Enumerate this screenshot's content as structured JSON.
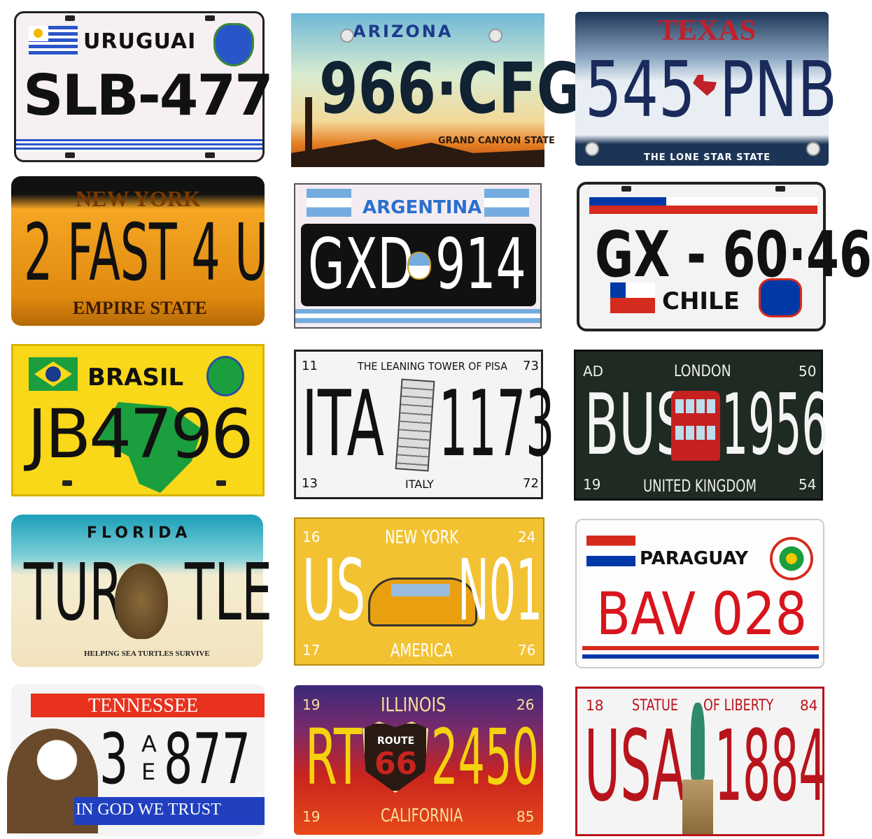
{
  "plates": {
    "uruguay": {
      "country": "URUGUAI",
      "number": "SLB-477"
    },
    "arizona": {
      "state": "ARIZONA",
      "number": "966·CFG",
      "slogan": "GRAND CANYON STATE"
    },
    "texas": {
      "state": "TEXAS",
      "left": "545",
      "right": "PNB",
      "slogan": "THE LONE STAR STATE"
    },
    "newyork": {
      "state": "NEW YORK",
      "number": "2 FAST 4 U",
      "slogan": "EMPIRE STATE"
    },
    "argentina": {
      "country": "ARGENTINA",
      "left": "GXD",
      "right": "914"
    },
    "chile": {
      "number": "GX - 60·46",
      "country": "CHILE"
    },
    "brasil": {
      "country": "BRASIL",
      "number": "JB4796"
    },
    "italy": {
      "tl": "11",
      "tr": "73",
      "bl": "13",
      "br": "72",
      "header": "THE LEANING TOWER OF PISA",
      "left": "ITA",
      "right": "1173",
      "country": "ITALY"
    },
    "london": {
      "tl": "AD",
      "tr": "50",
      "bl": "19",
      "br": "54",
      "city": "LONDON",
      "left": "BUS",
      "right": "1956",
      "country": "UNITED KINGDOM"
    },
    "florida": {
      "state": "FLORIDA",
      "left": "TUR",
      "right": "TLE",
      "slogan": "HELPING SEA TURTLES SURVIVE"
    },
    "nytaxi": {
      "tl": "16",
      "tr": "24",
      "bl": "17",
      "br": "76",
      "city": "NEW YORK",
      "left": "US",
      "right": "N01",
      "country": "AMERICA"
    },
    "paraguay": {
      "country": "PARAGUAY",
      "number": "BAV 028"
    },
    "tennessee": {
      "state": "TENNESSEE",
      "left": "3",
      "a": "A",
      "e": "E",
      "right": "877",
      "slogan": "IN GOD WE TRUST"
    },
    "illinois": {
      "tl": "19",
      "tr": "26",
      "bl": "19",
      "br": "85",
      "state": "ILLINOIS",
      "left": "RT",
      "route": "ROUTE",
      "routenum": "66",
      "right": "2450",
      "bottom": "CALIFORNIA"
    },
    "liberty": {
      "tl": "18",
      "tr": "84",
      "header_a": "STATUE",
      "header_b": "OF LIBERTY",
      "left": "USA",
      "right": "1884"
    }
  }
}
